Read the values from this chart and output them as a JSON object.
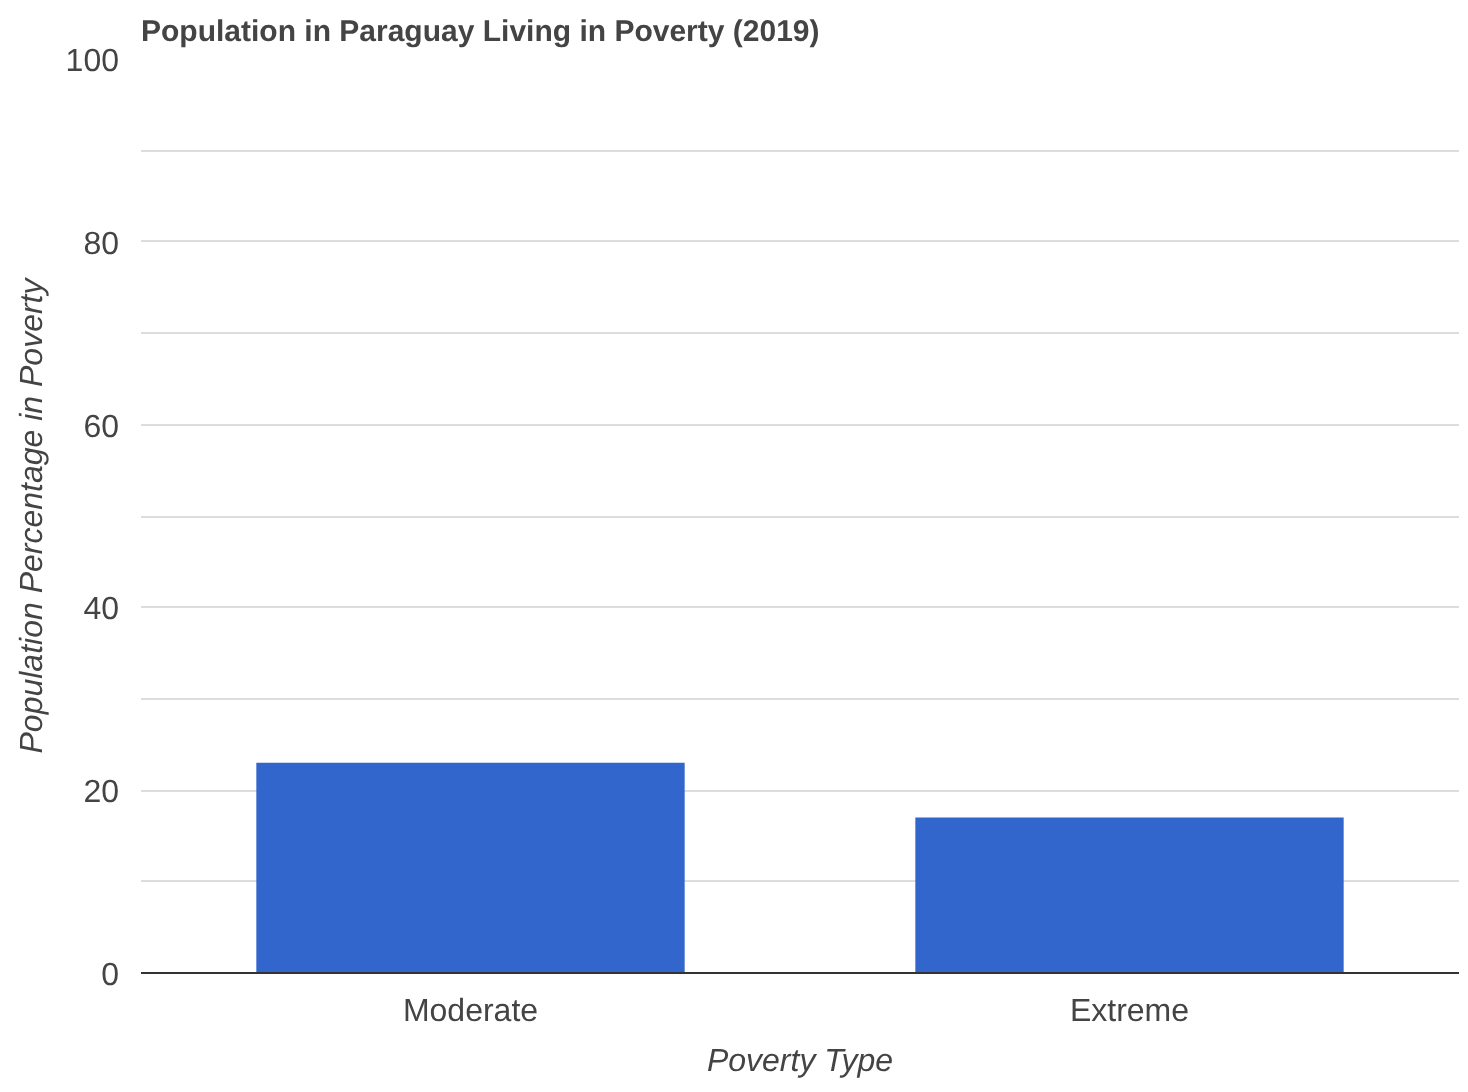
{
  "chart_data": {
    "type": "bar",
    "title": "Population in Paraguay Living in Poverty (2019)",
    "xlabel": "Poverty Type",
    "ylabel": "Population Percentage in Poverty",
    "categories": [
      "Moderate",
      "Extreme"
    ],
    "values": [
      23,
      17
    ],
    "color": "#3366cc",
    "ylim": [
      0,
      100
    ],
    "yticks": [
      0,
      {
        "value": 10,
        "label": null
      },
      20,
      {
        "value": 30,
        "label": null
      },
      40,
      {
        "value": 50,
        "label": null
      },
      60,
      {
        "value": 70,
        "label": null
      },
      80,
      {
        "value": 90,
        "label": null
      },
      100
    ],
    "grid": "y"
  }
}
